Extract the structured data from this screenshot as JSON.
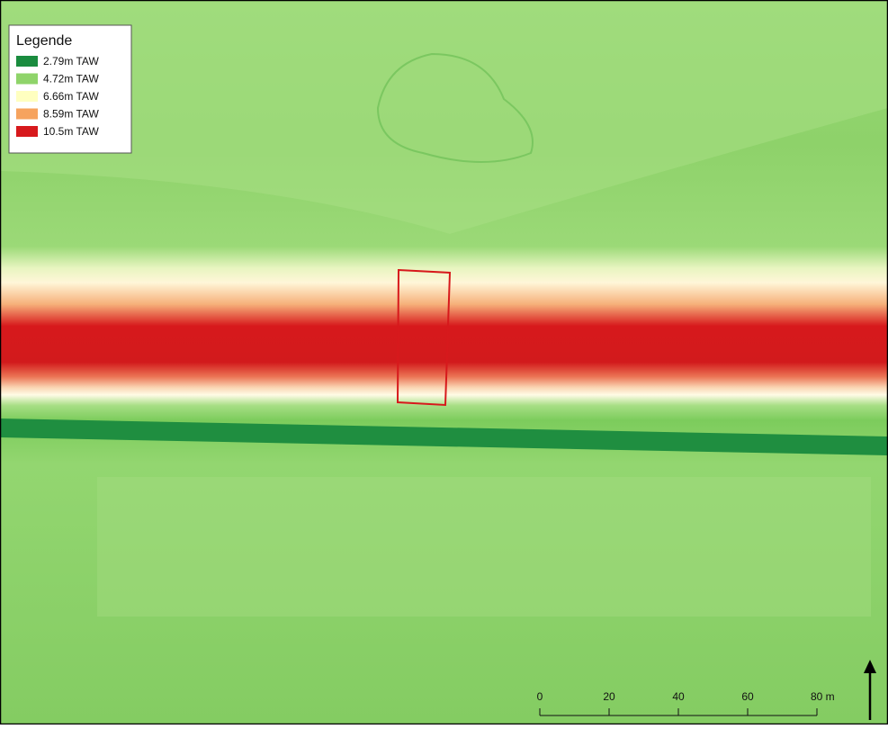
{
  "legend": {
    "title": "Legende",
    "items": [
      {
        "label": "2.79m TAW",
        "color": "#1a8c3f"
      },
      {
        "label": "4.72m TAW",
        "color": "#8fd46a"
      },
      {
        "label": "6.66m TAW",
        "color": "#ffffc0"
      },
      {
        "label": "8.59m TAW",
        "color": "#f6a35e"
      },
      {
        "label": "10.5m TAW",
        "color": "#d7191c"
      }
    ]
  },
  "scale_bar": {
    "labels": [
      "0",
      "20",
      "40",
      "60",
      "80 m"
    ]
  }
}
